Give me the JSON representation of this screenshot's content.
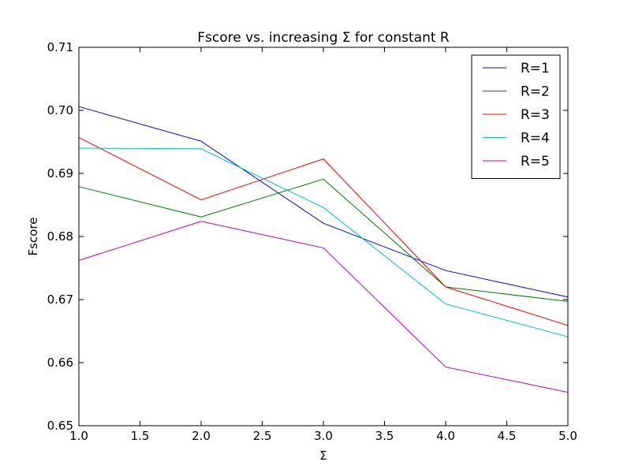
{
  "chart_data": {
    "type": "line",
    "title": "Fscore vs. increasing Σ for constant R",
    "xlabel": "Σ",
    "ylabel": "Fscore",
    "xlim": [
      1.0,
      5.0
    ],
    "ylim": [
      0.65,
      0.71
    ],
    "xticks": [
      "1.0",
      "1.5",
      "2.0",
      "2.5",
      "3.0",
      "3.5",
      "4.0",
      "4.5",
      "5.0"
    ],
    "yticks": [
      "0.65",
      "0.66",
      "0.67",
      "0.68",
      "0.69",
      "0.70",
      "0.71"
    ],
    "x": [
      1,
      2,
      3,
      4,
      5
    ],
    "grid": false,
    "legend_position": "top-right",
    "series": [
      {
        "name": "R=1",
        "color": "#0000ff",
        "values": [
          0.7006,
          0.6951,
          0.6821,
          0.6746,
          0.6704
        ]
      },
      {
        "name": "R=2",
        "color": "#008000",
        "values": [
          0.6879,
          0.6831,
          0.6891,
          0.672,
          0.6697
        ]
      },
      {
        "name": "R=3",
        "color": "#ff0000",
        "values": [
          0.6957,
          0.6858,
          0.6923,
          0.672,
          0.6659
        ]
      },
      {
        "name": "R=4",
        "color": "#00bfbf",
        "values": [
          0.694,
          0.6939,
          0.6846,
          0.6693,
          0.6641
        ]
      },
      {
        "name": "R=5",
        "color": "#bf00bf",
        "values": [
          0.6762,
          0.6824,
          0.6782,
          0.6593,
          0.6553
        ]
      }
    ]
  }
}
